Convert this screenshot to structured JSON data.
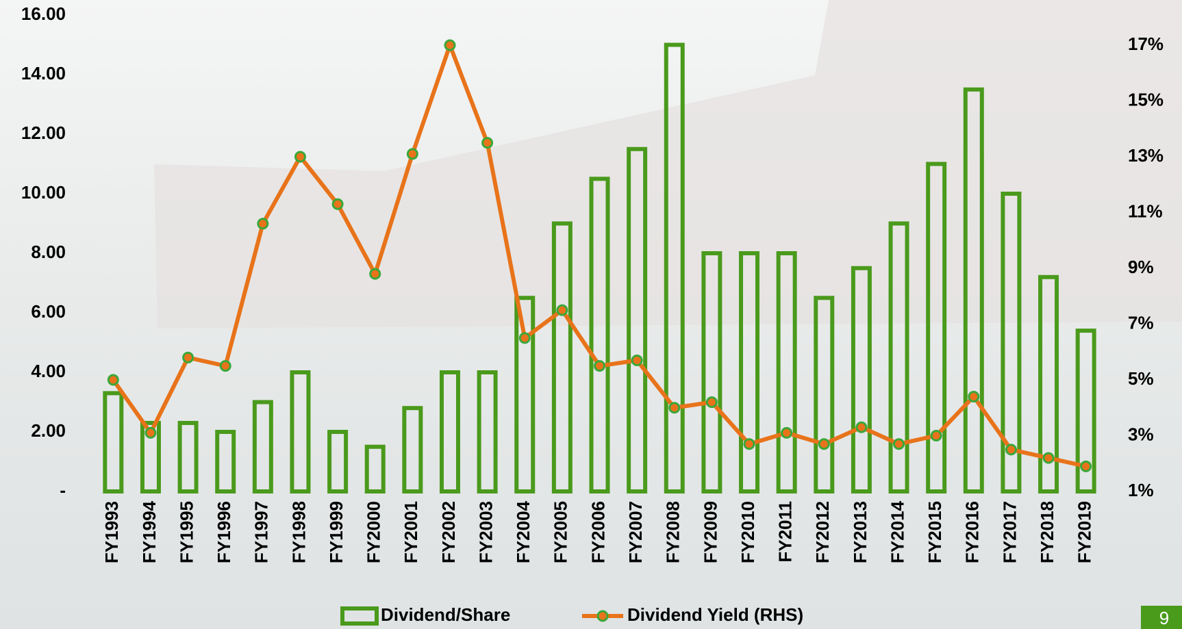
{
  "chart_data": {
    "type": "bar_line",
    "categories": [
      "FY1993",
      "FY1994",
      "FY1995",
      "FY1996",
      "FY1997",
      "FY1998",
      "FY1999",
      "FY2000",
      "FY2001",
      "FY2002",
      "FY2003",
      "FY2004",
      "FY2005",
      "FY2006",
      "FY2007",
      "FY2008",
      "FY2009",
      "FY2010",
      "FY2011",
      "FY2012",
      "FY2013",
      "FY2014",
      "FY2015",
      "FY2016",
      "FY2017",
      "FY2018",
      "FY2019"
    ],
    "series": [
      {
        "name": "Dividend/Share",
        "type": "bar",
        "color": "#4a9a1c",
        "axis": "y",
        "values": [
          3.3,
          2.3,
          2.3,
          2.0,
          3.0,
          4.0,
          2.0,
          1.5,
          2.8,
          4.0,
          4.0,
          6.5,
          9.0,
          10.5,
          11.5,
          15.0,
          8.0,
          8.0,
          8.0,
          6.5,
          7.5,
          9.0,
          11.0,
          13.5,
          10.0,
          7.2,
          5.4
        ]
      },
      {
        "name": "Dividend Yield (RHS)",
        "type": "line",
        "color": "#e8731a",
        "marker_color": "#3aa83a",
        "axis": "y2",
        "values": [
          5.0,
          3.1,
          5.8,
          5.5,
          10.6,
          13.0,
          11.3,
          8.8,
          13.1,
          17.0,
          13.5,
          6.5,
          7.5,
          5.5,
          5.7,
          4.0,
          4.2,
          2.7,
          3.1,
          2.7,
          3.3,
          2.7,
          3.0,
          4.4,
          2.5,
          2.2,
          1.9
        ]
      }
    ],
    "ylim": [
      0,
      16
    ],
    "yticks": [
      {
        "value": 0,
        "label": "-"
      },
      {
        "value": 2,
        "label": "2.00"
      },
      {
        "value": 4,
        "label": "4.00"
      },
      {
        "value": 6,
        "label": "6.00"
      },
      {
        "value": 8,
        "label": "8.00"
      },
      {
        "value": 10,
        "label": "10.00"
      },
      {
        "value": 12,
        "label": "12.00"
      },
      {
        "value": 14,
        "label": "14.00"
      },
      {
        "value": 16,
        "label": "16.00"
      }
    ],
    "y2lim": [
      1,
      18.08
    ],
    "y2ticks": [
      {
        "value": 1,
        "label": "1%"
      },
      {
        "value": 3,
        "label": "3%"
      },
      {
        "value": 5,
        "label": "5%"
      },
      {
        "value": 7,
        "label": "7%"
      },
      {
        "value": 9,
        "label": "9%"
      },
      {
        "value": 11,
        "label": "11%"
      },
      {
        "value": 13,
        "label": "13%"
      },
      {
        "value": 15,
        "label": "15%"
      },
      {
        "value": 17,
        "label": "17%"
      }
    ],
    "legend": "bottom",
    "page_number": "9"
  }
}
